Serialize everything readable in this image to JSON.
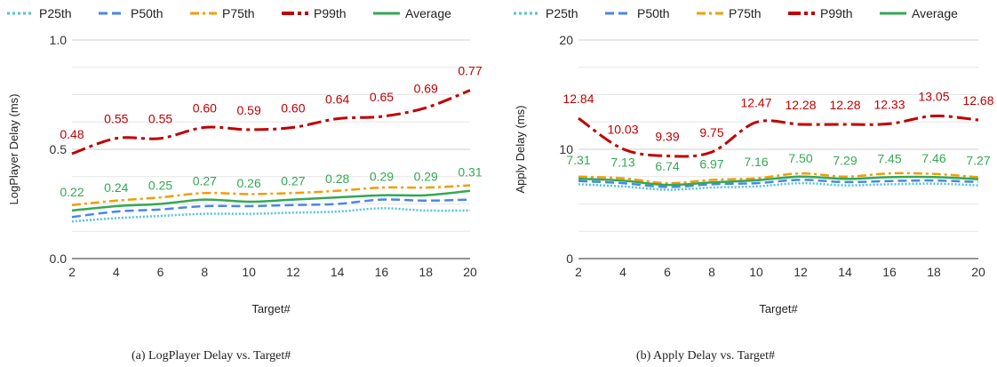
{
  "chart_data": [
    {
      "type": "line",
      "caption": "(a)  LogPlayer Delay vs. Target#",
      "xlabel": "Target#",
      "ylabel": "LogPlayer Delay (ms)",
      "ylim": [
        0,
        1.0
      ],
      "yticks": [
        "0.0",
        "0.5",
        "1.0"
      ],
      "x": [
        2,
        4,
        6,
        8,
        10,
        12,
        14,
        16,
        18,
        20
      ],
      "grid": true,
      "legend_position": "top",
      "series": [
        {
          "name": "P25th",
          "color": "#4fc3d9",
          "style": "dotted",
          "values": [
            0.17,
            0.185,
            0.195,
            0.205,
            0.205,
            0.21,
            0.215,
            0.23,
            0.22,
            0.22
          ]
        },
        {
          "name": "P50th",
          "color": "#4a86e8",
          "style": "dashed",
          "values": [
            0.19,
            0.215,
            0.225,
            0.24,
            0.24,
            0.245,
            0.25,
            0.27,
            0.265,
            0.27
          ]
        },
        {
          "name": "P75th",
          "color": "#f29d0a",
          "style": "dashdot",
          "values": [
            0.245,
            0.265,
            0.28,
            0.3,
            0.295,
            0.3,
            0.31,
            0.325,
            0.325,
            0.335
          ]
        },
        {
          "name": "P99th",
          "color": "#c00000",
          "style": "longdashdot",
          "labels": [
            "0.48",
            "0.55",
            "0.55",
            "0.60",
            "0.59",
            "0.60",
            "0.64",
            "0.65",
            "0.69",
            "0.77"
          ],
          "values": [
            0.48,
            0.55,
            0.55,
            0.6,
            0.59,
            0.6,
            0.64,
            0.65,
            0.69,
            0.77
          ]
        },
        {
          "name": "Average",
          "color": "#34a853",
          "style": "solid",
          "labels": [
            "0.22",
            "0.24",
            "0.25",
            "0.27",
            "0.26",
            "0.27",
            "0.28",
            "0.29",
            "0.29",
            "0.31"
          ],
          "values": [
            0.22,
            0.24,
            0.25,
            0.27,
            0.26,
            0.27,
            0.28,
            0.29,
            0.29,
            0.31
          ]
        }
      ]
    },
    {
      "type": "line",
      "caption": "(b)  Apply Delay vs. Target#",
      "xlabel": "Target#",
      "ylabel": "Apply Delay (ms)",
      "ylim": [
        0,
        20
      ],
      "yticks": [
        "0",
        "10",
        "20"
      ],
      "x": [
        2,
        4,
        6,
        8,
        10,
        12,
        14,
        16,
        18,
        20
      ],
      "grid": true,
      "legend_position": "top",
      "series": [
        {
          "name": "P25th",
          "color": "#4fc3d9",
          "style": "dotted",
          "values": [
            6.8,
            6.6,
            6.3,
            6.5,
            6.6,
            6.9,
            6.7,
            6.8,
            6.85,
            6.7
          ]
        },
        {
          "name": "P50th",
          "color": "#4a86e8",
          "style": "dashed",
          "values": [
            7.1,
            6.9,
            6.55,
            6.8,
            6.9,
            7.2,
            7.0,
            7.1,
            7.15,
            7.0
          ]
        },
        {
          "name": "P75th",
          "color": "#f29d0a",
          "style": "dashdot",
          "values": [
            7.5,
            7.35,
            6.9,
            7.2,
            7.35,
            7.8,
            7.5,
            7.8,
            7.75,
            7.45
          ]
        },
        {
          "name": "P99th",
          "color": "#c00000",
          "style": "longdashdot",
          "labels": [
            "12.84",
            "10.03",
            "9.39",
            "9.75",
            "12.47",
            "12.28",
            "12.28",
            "12.33",
            "13.05",
            "12.68"
          ],
          "values": [
            12.84,
            10.03,
            9.39,
            9.75,
            12.47,
            12.28,
            12.28,
            12.33,
            13.05,
            12.68
          ]
        },
        {
          "name": "Average",
          "color": "#34a853",
          "style": "solid",
          "labels": [
            "7.31",
            "7.13",
            "6.74",
            "6.97",
            "7.16",
            "7.50",
            "7.29",
            "7.45",
            "7.46",
            "7.27"
          ],
          "values": [
            7.31,
            7.13,
            6.74,
            6.97,
            7.16,
            7.5,
            7.29,
            7.45,
            7.46,
            7.27
          ]
        }
      ]
    }
  ]
}
